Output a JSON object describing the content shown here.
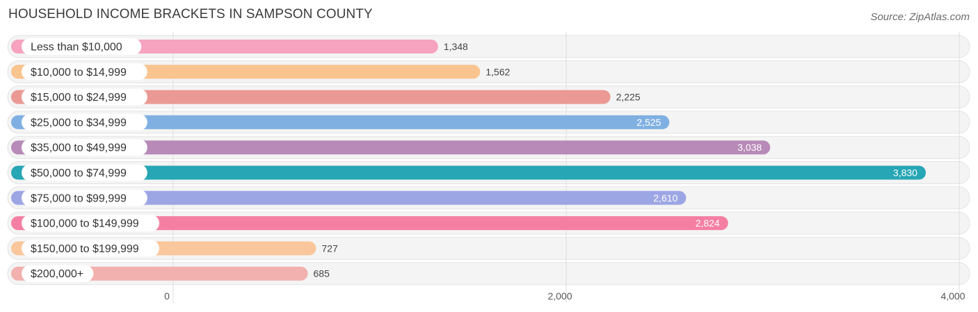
{
  "header": {
    "title": "HOUSEHOLD INCOME BRACKETS IN SAMPSON COUNTY",
    "source": "Source: ZipAtlas.com"
  },
  "chart_data": {
    "type": "bar",
    "orientation": "horizontal",
    "title": "HOUSEHOLD INCOME BRACKETS IN SAMPSON COUNTY",
    "categories": [
      "Less than $10,000",
      "$10,000 to $14,999",
      "$15,000 to $24,999",
      "$25,000 to $34,999",
      "$35,000 to $49,999",
      "$50,000 to $74,999",
      "$75,000 to $99,999",
      "$100,000 to $149,999",
      "$150,000 to $199,999",
      "$200,000+"
    ],
    "values": [
      1348,
      1562,
      2225,
      2525,
      3038,
      3830,
      2610,
      2824,
      727,
      685
    ],
    "value_labels": [
      "1,348",
      "1,562",
      "2,225",
      "2,525",
      "3,038",
      "3,830",
      "2,610",
      "2,824",
      "727",
      "685"
    ],
    "colors": [
      "#f5a3bf",
      "#f9c48f",
      "#eb9994",
      "#80b0e2",
      "#b78ab8",
      "#27a6b5",
      "#9da6e4",
      "#f57fa2",
      "#f9c79b",
      "#f2b0ae"
    ],
    "xlim": [
      0,
      4000
    ],
    "xticks": [
      0,
      2000,
      4000
    ],
    "xtick_labels": [
      "0",
      "2,000",
      "4,000"
    ],
    "grid": true,
    "legend": "none"
  }
}
